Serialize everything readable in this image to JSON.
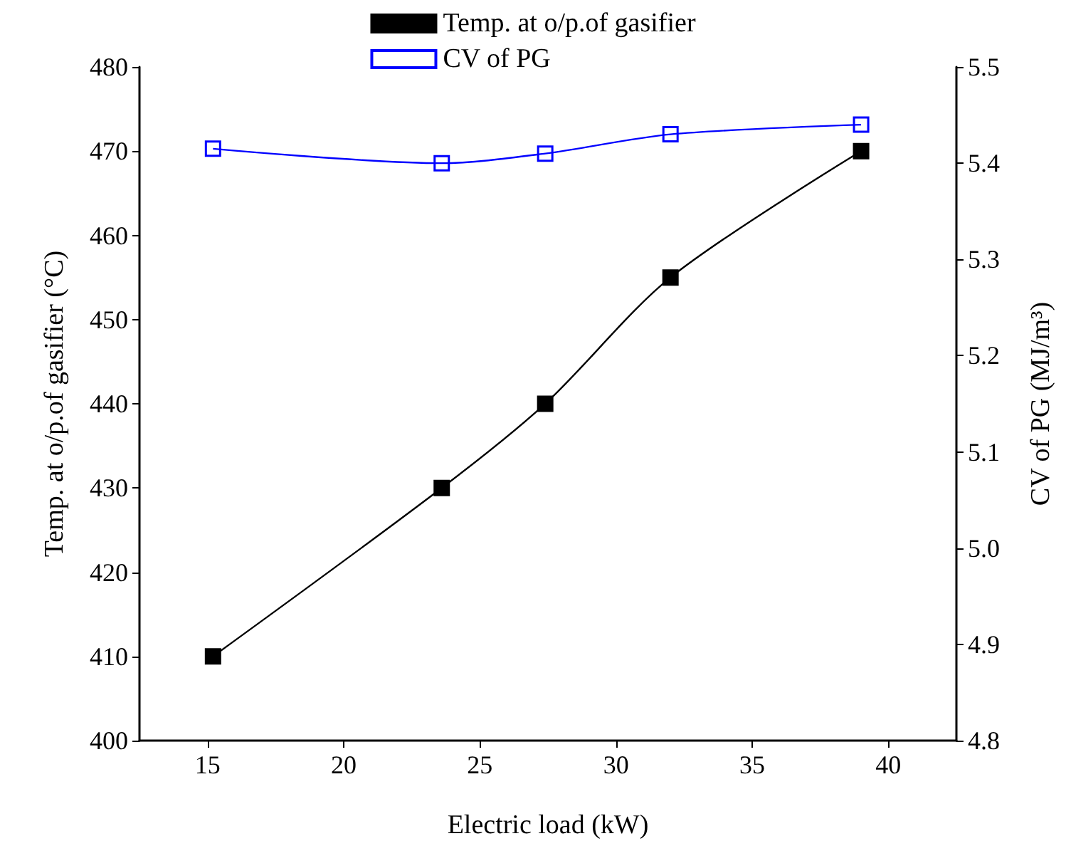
{
  "chart_data": {
    "type": "line",
    "xlabel": "Electric load (kW)",
    "ylabel": "Temp. at o/p.of gasifier (°C)",
    "y2label": "CV of PG (MJ/m³)",
    "x": [
      15.2,
      23.6,
      27.4,
      32.0,
      39.0
    ],
    "series": [
      {
        "name": "Temp. at o/p.of gasifier",
        "color": "#000000",
        "marker": "square",
        "values": [
          410,
          430,
          440,
          455,
          470
        ]
      },
      {
        "name": "CV of PG",
        "color": "#0000ff",
        "marker": "square",
        "axis": "y2",
        "values": [
          5.415,
          5.4,
          5.41,
          5.43,
          5.44
        ]
      }
    ],
    "xlim": [
      12.5,
      42.5
    ],
    "xticks": [
      15,
      20,
      25,
      30,
      35,
      40
    ],
    "ylim": [
      400,
      480
    ],
    "yticks": [
      400,
      410,
      420,
      430,
      440,
      450,
      460,
      470,
      480
    ],
    "y2lim": [
      4.8,
      5.5
    ],
    "y2ticks": [
      4.8,
      4.9,
      {
        "value": 5,
        "label": "5.0"
      },
      5.1,
      5.2,
      5.3,
      5.4,
      5.5
    ],
    "legend": "top",
    "grid": false
  }
}
